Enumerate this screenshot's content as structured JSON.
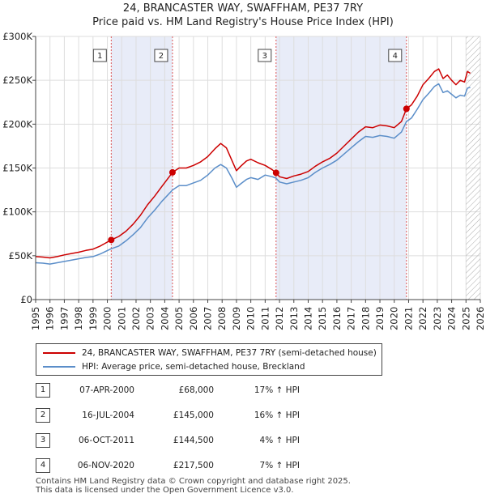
{
  "title": {
    "line1": "24, BRANCASTER WAY, SWAFFHAM, PE37 7RY",
    "line2": "Price paid vs. HM Land Registry's House Price Index (HPI)"
  },
  "colors": {
    "property": "#cc0000",
    "hpi": "#5b8ec9",
    "shade": "#e8ecf8",
    "marker_line": "#dd5555",
    "hatch": "#aaaaaa"
  },
  "chart_data": {
    "type": "line",
    "title": "24, BRANCASTER WAY, SWAFFHAM, PE37 7RY — Price paid vs. HM Land Registry's House Price Index (HPI)",
    "xlabel": "",
    "ylabel": "",
    "xlim": [
      1995,
      2026
    ],
    "ylim": [
      0,
      300000
    ],
    "y_ticks": [
      0,
      50000,
      100000,
      150000,
      200000,
      250000,
      300000
    ],
    "y_tick_labels": [
      "£0",
      "£50K",
      "£100K",
      "£150K",
      "£200K",
      "£250K",
      "£300K"
    ],
    "x_ticks": [
      1995,
      1996,
      1997,
      1998,
      1999,
      2000,
      2001,
      2002,
      2003,
      2004,
      2005,
      2006,
      2007,
      2008,
      2009,
      2010,
      2011,
      2012,
      2013,
      2014,
      2015,
      2016,
      2017,
      2018,
      2019,
      2020,
      2021,
      2022,
      2023,
      2024,
      2025,
      2026
    ],
    "x_tick_labels": [
      "1995",
      "1996",
      "1997",
      "1998",
      "1999",
      "2000",
      "2001",
      "2002",
      "2003",
      "2004",
      "2005",
      "2006",
      "2007",
      "2008",
      "2009",
      "2010",
      "2011",
      "2012",
      "2013",
      "2014",
      "2015",
      "2016",
      "2017",
      "2018",
      "2019",
      "2020",
      "2021",
      "2022",
      "2023",
      "2024",
      "2025",
      "2026"
    ],
    "grid": true,
    "future_hatch_from": 2025.0,
    "shaded_periods": [
      [
        2000.27,
        2004.54
      ],
      [
        2011.76,
        2020.85
      ]
    ],
    "series": [
      {
        "name": "24, BRANCASTER WAY, SWAFFHAM, PE37 7RY (semi-detached house)",
        "color": "#cc0000",
        "points": [
          [
            1995.0,
            49000
          ],
          [
            1995.5,
            48500
          ],
          [
            1996.0,
            47500
          ],
          [
            1996.5,
            49000
          ],
          [
            1997.0,
            51000
          ],
          [
            1997.5,
            52500
          ],
          [
            1998.0,
            54000
          ],
          [
            1998.5,
            56000
          ],
          [
            1999.0,
            57500
          ],
          [
            1999.5,
            61000
          ],
          [
            2000.27,
            68000
          ],
          [
            2000.8,
            72000
          ],
          [
            2001.3,
            78000
          ],
          [
            2001.8,
            86000
          ],
          [
            2002.3,
            96000
          ],
          [
            2002.8,
            108000
          ],
          [
            2003.3,
            118000
          ],
          [
            2003.8,
            129000
          ],
          [
            2004.54,
            145000
          ],
          [
            2005.0,
            150000
          ],
          [
            2005.5,
            150000
          ],
          [
            2006.0,
            153000
          ],
          [
            2006.5,
            157000
          ],
          [
            2007.0,
            163000
          ],
          [
            2007.5,
            172000
          ],
          [
            2007.9,
            178000
          ],
          [
            2008.3,
            173000
          ],
          [
            2008.7,
            158000
          ],
          [
            2009.0,
            147000
          ],
          [
            2009.3,
            152000
          ],
          [
            2009.7,
            158000
          ],
          [
            2010.0,
            160000
          ],
          [
            2010.5,
            156000
          ],
          [
            2011.0,
            153000
          ],
          [
            2011.5,
            148000
          ],
          [
            2011.76,
            144500
          ],
          [
            2012.0,
            140000
          ],
          [
            2012.5,
            138000
          ],
          [
            2013.0,
            141000
          ],
          [
            2013.5,
            143000
          ],
          [
            2014.0,
            146000
          ],
          [
            2014.5,
            152000
          ],
          [
            2015.0,
            157000
          ],
          [
            2015.5,
            161000
          ],
          [
            2016.0,
            167000
          ],
          [
            2016.5,
            175000
          ],
          [
            2017.0,
            183000
          ],
          [
            2017.5,
            191000
          ],
          [
            2018.0,
            197000
          ],
          [
            2018.5,
            196000
          ],
          [
            2019.0,
            199000
          ],
          [
            2019.5,
            198000
          ],
          [
            2020.0,
            196000
          ],
          [
            2020.5,
            203000
          ],
          [
            2020.85,
            217500
          ],
          [
            2021.2,
            222000
          ],
          [
            2021.6,
            232000
          ],
          [
            2022.0,
            245000
          ],
          [
            2022.4,
            252000
          ],
          [
            2022.8,
            260000
          ],
          [
            2023.1,
            263000
          ],
          [
            2023.4,
            252000
          ],
          [
            2023.7,
            256000
          ],
          [
            2024.0,
            250000
          ],
          [
            2024.3,
            245000
          ],
          [
            2024.6,
            250000
          ],
          [
            2024.9,
            248000
          ],
          [
            2025.1,
            260000
          ],
          [
            2025.3,
            258000
          ]
        ]
      },
      {
        "name": "HPI: Average price, semi-detached house, Breckland",
        "color": "#5b8ec9",
        "points": [
          [
            1995.0,
            42000
          ],
          [
            1995.5,
            41500
          ],
          [
            1996.0,
            40500
          ],
          [
            1996.5,
            42000
          ],
          [
            1997.0,
            43500
          ],
          [
            1997.5,
            45000
          ],
          [
            1998.0,
            46500
          ],
          [
            1998.5,
            48000
          ],
          [
            1999.0,
            49000
          ],
          [
            1999.5,
            52000
          ],
          [
            2000.27,
            58000
          ],
          [
            2000.8,
            61000
          ],
          [
            2001.3,
            67000
          ],
          [
            2001.8,
            74000
          ],
          [
            2002.3,
            82000
          ],
          [
            2002.8,
            93000
          ],
          [
            2003.3,
            102000
          ],
          [
            2003.8,
            112000
          ],
          [
            2004.54,
            125000
          ],
          [
            2005.0,
            130000
          ],
          [
            2005.5,
            130000
          ],
          [
            2006.0,
            133000
          ],
          [
            2006.5,
            136000
          ],
          [
            2007.0,
            142000
          ],
          [
            2007.5,
            150000
          ],
          [
            2007.9,
            154000
          ],
          [
            2008.3,
            150000
          ],
          [
            2008.7,
            138000
          ],
          [
            2009.0,
            128000
          ],
          [
            2009.3,
            132000
          ],
          [
            2009.7,
            137000
          ],
          [
            2010.0,
            139000
          ],
          [
            2010.5,
            137000
          ],
          [
            2011.0,
            142000
          ],
          [
            2011.5,
            140000
          ],
          [
            2011.76,
            138500
          ],
          [
            2012.0,
            134000
          ],
          [
            2012.5,
            132000
          ],
          [
            2013.0,
            134000
          ],
          [
            2013.5,
            136000
          ],
          [
            2014.0,
            139000
          ],
          [
            2014.5,
            145000
          ],
          [
            2015.0,
            150000
          ],
          [
            2015.5,
            154000
          ],
          [
            2016.0,
            159000
          ],
          [
            2016.5,
            166000
          ],
          [
            2017.0,
            173000
          ],
          [
            2017.5,
            180000
          ],
          [
            2018.0,
            186000
          ],
          [
            2018.5,
            185000
          ],
          [
            2019.0,
            187000
          ],
          [
            2019.5,
            186000
          ],
          [
            2020.0,
            184000
          ],
          [
            2020.5,
            191000
          ],
          [
            2020.85,
            203000
          ],
          [
            2021.2,
            207000
          ],
          [
            2021.6,
            217000
          ],
          [
            2022.0,
            228000
          ],
          [
            2022.4,
            235000
          ],
          [
            2022.8,
            243000
          ],
          [
            2023.1,
            246000
          ],
          [
            2023.4,
            236000
          ],
          [
            2023.7,
            238000
          ],
          [
            2024.0,
            234000
          ],
          [
            2024.3,
            230000
          ],
          [
            2024.6,
            233000
          ],
          [
            2024.9,
            232000
          ],
          [
            2025.1,
            241000
          ],
          [
            2025.3,
            242000
          ]
        ]
      }
    ],
    "sales": [
      {
        "label": "1",
        "x": 2000.27,
        "value": 68000
      },
      {
        "label": "2",
        "x": 2004.54,
        "value": 145000
      },
      {
        "label": "3",
        "x": 2011.76,
        "value": 144500
      },
      {
        "label": "4",
        "x": 2020.85,
        "value": 217500
      }
    ]
  },
  "legend": {
    "property_label": "24, BRANCASTER WAY, SWAFFHAM, PE37 7RY (semi-detached house)",
    "hpi_label": "HPI: Average price, semi-detached house, Breckland"
  },
  "transactions": [
    {
      "num": "1",
      "date": "07-APR-2000",
      "price": "£68,000",
      "hpi": "17% ↑ HPI"
    },
    {
      "num": "2",
      "date": "16-JUL-2004",
      "price": "£145,000",
      "hpi": "16% ↑ HPI"
    },
    {
      "num": "3",
      "date": "06-OCT-2011",
      "price": "£144,500",
      "hpi": "4% ↑ HPI"
    },
    {
      "num": "4",
      "date": "06-NOV-2020",
      "price": "£217,500",
      "hpi": "7% ↑ HPI"
    }
  ],
  "footer": {
    "line1": "Contains HM Land Registry data © Crown copyright and database right 2025.",
    "line2": "This data is licensed under the Open Government Licence v3.0."
  }
}
